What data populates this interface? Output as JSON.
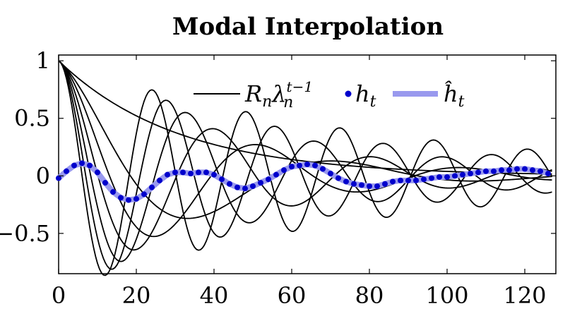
{
  "chart_data": {
    "type": "line",
    "title": "Modal Interpolation",
    "xlabel": "",
    "ylabel": "",
    "xlim": [
      0,
      128
    ],
    "ylim": [
      -0.85,
      1.05
    ],
    "xticks": [
      0,
      20,
      40,
      60,
      80,
      100,
      120
    ],
    "xtick_labels": [
      "0",
      "20",
      "40",
      "60",
      "80",
      "100",
      "120"
    ],
    "yticks": [
      1,
      0.5,
      0,
      -0.5
    ],
    "ytick_labels": [
      "1",
      "0.5",
      "0",
      "−0.5"
    ],
    "grid": false,
    "legend_position": "top-right",
    "legend": [
      {
        "name": "R_n λ_n^(t−1)",
        "label_main": "R",
        "label_sub": "n",
        "label_main2": "λ",
        "label_sub2": "n",
        "label_sup2": "t−1",
        "style": "black-line"
      },
      {
        "name": "h_t",
        "label_main": "h",
        "label_sub": "t",
        "style": "blue-dots"
      },
      {
        "name": "ĥ_t",
        "label_main": "ĥ",
        "label_sub": "t",
        "style": "light-blue-line"
      }
    ],
    "modes": [
      {
        "r": 0.968,
        "freq": 0.0
      },
      {
        "r": 0.972,
        "freq": 0.085
      },
      {
        "r": 0.975,
        "freq": 0.12
      },
      {
        "r": 0.978,
        "freq": 0.155
      },
      {
        "r": 0.982,
        "freq": 0.19
      },
      {
        "r": 0.985,
        "freq": 0.225
      },
      {
        "r": 0.988,
        "freq": 0.26
      }
    ],
    "series": [
      {
        "name": "h_t",
        "x": [
          0,
          2,
          4,
          6,
          8,
          10,
          12,
          14,
          16,
          18,
          20,
          22,
          24,
          26,
          28,
          30,
          32,
          34,
          36,
          38,
          40,
          42,
          44,
          46,
          48,
          50,
          52,
          54,
          56,
          58,
          60,
          62,
          64,
          66,
          68,
          70,
          72,
          74,
          76,
          78,
          80,
          82,
          84,
          86,
          88,
          90,
          92,
          94,
          96,
          98,
          100,
          102,
          104,
          106,
          108,
          110,
          112,
          114,
          116,
          118,
          120,
          122,
          124,
          126
        ],
        "values": [
          -0.02,
          0.04,
          0.09,
          0.11,
          0.09,
          0.03,
          -0.06,
          -0.14,
          -0.19,
          -0.21,
          -0.2,
          -0.16,
          -0.1,
          -0.04,
          0.01,
          0.03,
          0.03,
          0.02,
          0.03,
          0.03,
          0.01,
          -0.03,
          -0.07,
          -0.1,
          -0.11,
          -0.09,
          -0.06,
          -0.03,
          0.01,
          0.05,
          0.08,
          0.09,
          0.1,
          0.09,
          0.06,
          0.02,
          -0.02,
          -0.05,
          -0.07,
          -0.08,
          -0.09,
          -0.09,
          -0.07,
          -0.05,
          -0.04,
          -0.04,
          -0.04,
          -0.03,
          -0.02,
          -0.01,
          -0.01,
          0.0,
          0.01,
          0.02,
          0.03,
          0.04,
          0.04,
          0.05,
          0.05,
          0.06,
          0.06,
          0.05,
          0.04,
          0.02
        ]
      }
    ]
  }
}
